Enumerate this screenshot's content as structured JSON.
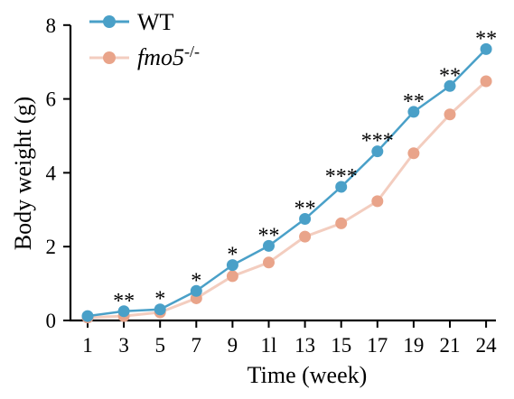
{
  "chart_data": {
    "type": "line",
    "title": "",
    "xlabel": "Time (week)",
    "ylabel": "Body weight (g)",
    "ylim": [
      0,
      8
    ],
    "yticks": [
      "0",
      "2",
      "4",
      "6",
      "8"
    ],
    "categories": [
      "1",
      "3",
      "5",
      "7",
      "9",
      "1l",
      "13",
      "15",
      "17",
      "19",
      "21",
      "24"
    ],
    "grid": false,
    "legend_position": "top-left",
    "series": [
      {
        "name": "WT",
        "color": "#4aa0c8",
        "values": [
          0.12,
          0.25,
          0.3,
          0.8,
          1.5,
          2.02,
          2.75,
          3.62,
          4.58,
          5.65,
          6.35,
          7.35
        ]
      },
      {
        "name_main": "fmo5",
        "name_sup": "-/-",
        "color": "#e9a48a",
        "values": [
          0.08,
          0.12,
          0.22,
          0.6,
          1.2,
          1.57,
          2.27,
          2.63,
          3.23,
          4.53,
          5.58,
          6.48
        ]
      }
    ],
    "significance": [
      "",
      "**",
      "*",
      "*",
      "*",
      "**",
      "**",
      "***",
      "***",
      "**",
      "**",
      "**"
    ]
  }
}
